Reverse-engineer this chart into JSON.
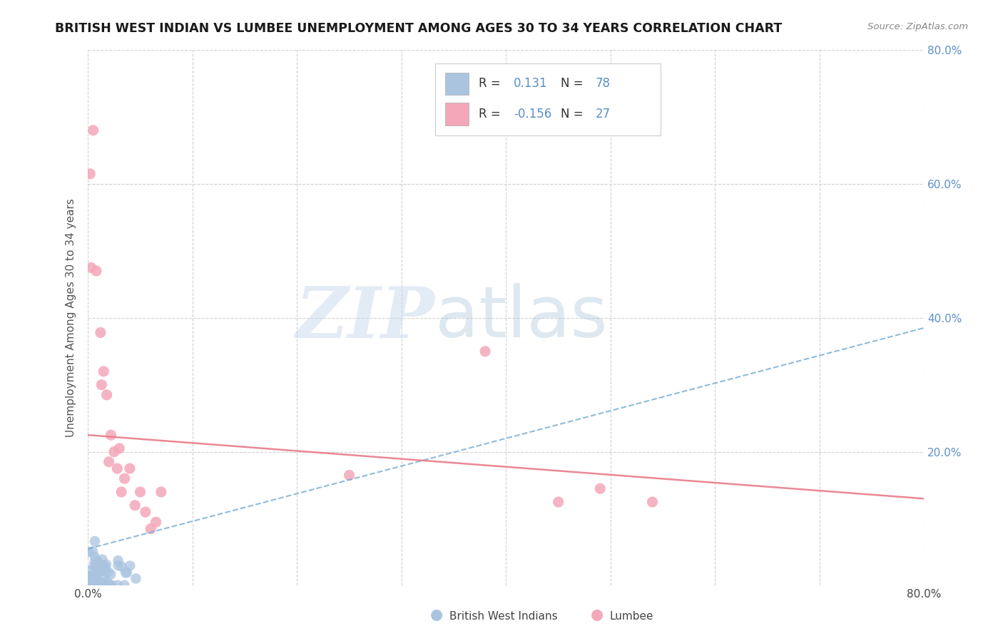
{
  "title": "BRITISH WEST INDIAN VS LUMBEE UNEMPLOYMENT AMONG AGES 30 TO 34 YEARS CORRELATION CHART",
  "source": "Source: ZipAtlas.com",
  "ylabel": "Unemployment Among Ages 30 to 34 years",
  "xlim": [
    0.0,
    0.8
  ],
  "ylim": [
    0.0,
    0.8
  ],
  "xticks": [
    0.0,
    0.1,
    0.2,
    0.3,
    0.4,
    0.5,
    0.6,
    0.7,
    0.8
  ],
  "xtick_labels": [
    "0.0%",
    "",
    "",
    "",
    "",
    "",
    "",
    "",
    "80.0%"
  ],
  "yticks_right": [
    0.0,
    0.2,
    0.4,
    0.6,
    0.8
  ],
  "ytick_labels_right": [
    "",
    "20.0%",
    "40.0%",
    "60.0%",
    "80.0%"
  ],
  "grid_color": "#cccccc",
  "background_color": "#ffffff",
  "blue_dot_color": "#aac4e0",
  "pink_dot_color": "#f4a7b9",
  "blue_line_color": "#7bafd4",
  "pink_line_color": "#e87b8a",
  "blue_text_color": "#5b8fc9",
  "legend_r_blue": "0.131",
  "legend_n_blue": "78",
  "legend_r_pink": "-0.156",
  "legend_n_pink": "27",
  "bwi_trend": [
    0.055,
    0.385
  ],
  "lumbee_trend": [
    0.225,
    0.13
  ],
  "lumbee_x": [
    0.002,
    0.003,
    0.005,
    0.008,
    0.012,
    0.013,
    0.015,
    0.018,
    0.02,
    0.022,
    0.025,
    0.028,
    0.03,
    0.032,
    0.035,
    0.04,
    0.045,
    0.05,
    0.055,
    0.06,
    0.065,
    0.07,
    0.25,
    0.38,
    0.45,
    0.49,
    0.54
  ],
  "lumbee_y": [
    0.615,
    0.475,
    0.68,
    0.47,
    0.378,
    0.3,
    0.32,
    0.285,
    0.185,
    0.225,
    0.2,
    0.175,
    0.205,
    0.14,
    0.16,
    0.175,
    0.12,
    0.14,
    0.11,
    0.085,
    0.095,
    0.14,
    0.165,
    0.35,
    0.125,
    0.145,
    0.125
  ]
}
